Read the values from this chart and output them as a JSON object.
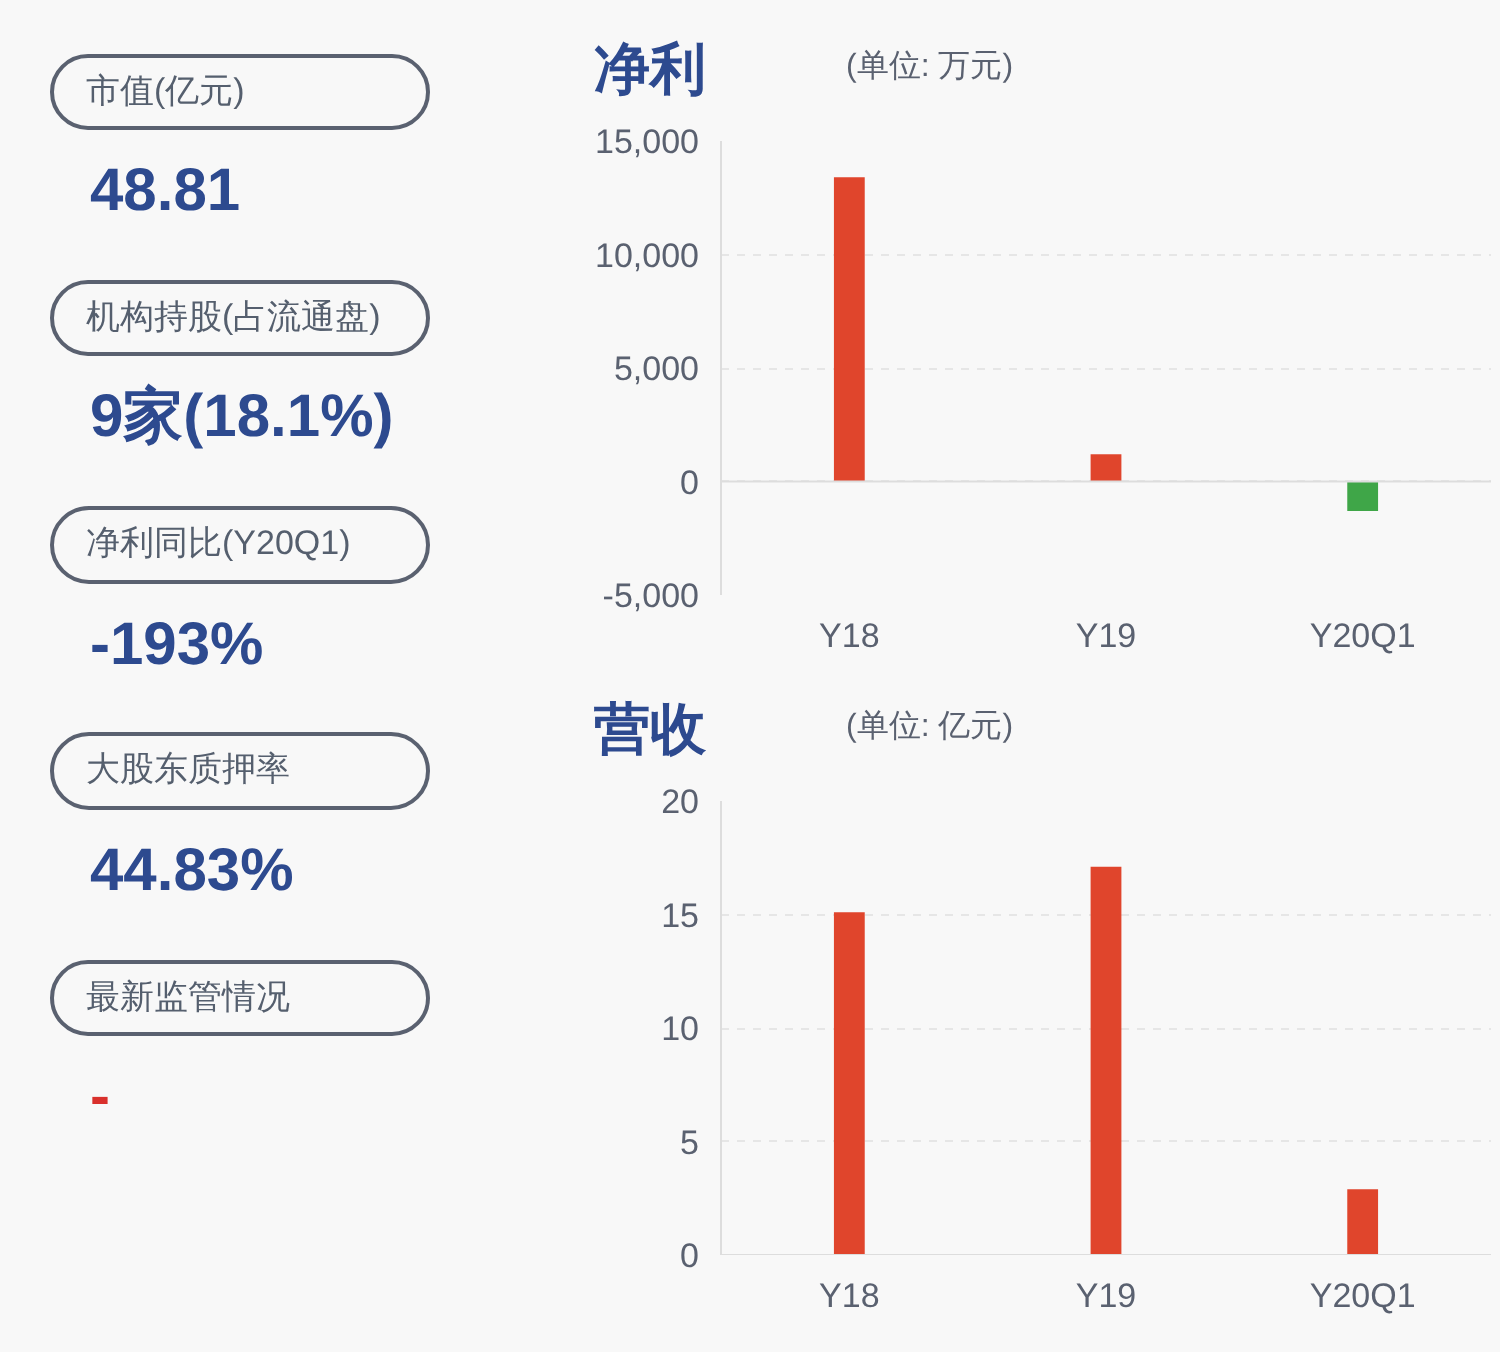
{
  "chart_data": [
    {
      "type": "other",
      "annotations": [
        "市值(亿元)",
        "48.81",
        "机构持股(占流通盘)",
        "9家(18.1%)",
        "净利同比(Y20Q1)",
        "-193%",
        "大股东质押率",
        "44.83%",
        "最新监管情况",
        "-"
      ],
      "colors": [
        "#555f6e",
        "#2d4a8f",
        "#555f6e",
        "#2d4a8f",
        "#555f6e",
        "#2d4a8f",
        "#555f6e",
        "#2d4a8f",
        "#555f6e",
        "#d9302c"
      ]
    },
    {
      "type": "bar",
      "title": "净利",
      "subtitle": "(单位: 万元)",
      "categories": [
        "Y18",
        "Y19",
        "Y20Q1"
      ],
      "values": [
        13400,
        1200,
        -1300
      ],
      "colors": [
        "#e0452c",
        "#e0452c",
        "#3fa648"
      ],
      "ylim": [
        -5000,
        15000
      ],
      "yticks": [
        {
          "value": -5000,
          "label": "-5,000"
        },
        0,
        {
          "value": 5000,
          "label": "5,000"
        },
        {
          "value": 10000,
          "label": "10,000"
        },
        {
          "value": 15000,
          "label": "15,000"
        }
      ],
      "grid": "y"
    },
    {
      "type": "bar",
      "title": "营收",
      "subtitle": "(单位: 亿元)",
      "categories": [
        "Y18",
        "Y19",
        "Y20Q1"
      ],
      "values": [
        15.1,
        17.1,
        2.9
      ],
      "colors": [
        "#e0452c",
        "#e0452c",
        "#e0452c"
      ],
      "ylim": [
        0,
        20
      ],
      "yticks": [
        0,
        5,
        10,
        15,
        20
      ],
      "grid": "y"
    }
  ]
}
